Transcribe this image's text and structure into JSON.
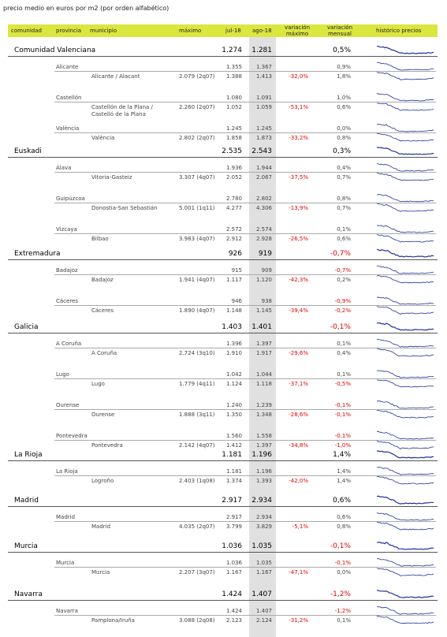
{
  "caption": "precio medio en euros por m2 (por orden alfabético)",
  "columns": {
    "comunidad": "comunidad",
    "provincia": "provincia",
    "municipio": "municipio",
    "maximo": "máximo",
    "jul": "jul-18",
    "ago": "ago-18",
    "var_max": "variación máximo",
    "var_mensual": "variación mensual",
    "historico": "histórico precios"
  },
  "accent_color": "#dbe73f",
  "negative_color": "#e00000",
  "sparkline_color": "#1f2f9a",
  "regions": [
    {
      "name": "Comunidad Valenciana",
      "jul": "1.274",
      "ago": "1.281",
      "var_mensual": "0,5%",
      "provinces": [
        {
          "name": "Alicante",
          "jul": "1.355",
          "ago": "1.367",
          "var_mensual": "0,9%",
          "city": {
            "name": "Alicante / Alacant",
            "maximo": "2.079 (2q07)",
            "jul": "1.388",
            "ago": "1.413",
            "var_max": "-32,0%",
            "var_mensual": "1,8%"
          }
        },
        {
          "name": "Castellón",
          "jul": "1.080",
          "ago": "1.091",
          "var_mensual": "1,0%",
          "city": {
            "name": "Castellón de la Plana / Castelló de la Plana",
            "maximo": "2.260 (2q07)",
            "jul": "1.052",
            "ago": "1.059",
            "var_max": "-53,1%",
            "var_mensual": "0,6%"
          }
        },
        {
          "name": "València",
          "jul": "1.245",
          "ago": "1.245",
          "var_mensual": "0,0%",
          "city": {
            "name": "València",
            "maximo": "2.802 (2q07)",
            "jul": "1.858",
            "ago": "1.873",
            "var_max": "-33,2%",
            "var_mensual": "0,8%"
          }
        }
      ]
    },
    {
      "name": "Euskadi",
      "jul": "2.535",
      "ago": "2.543",
      "var_mensual": "0,3%",
      "provinces": [
        {
          "name": "Álava",
          "jul": "1.936",
          "ago": "1.944",
          "var_mensual": "0,4%",
          "city": {
            "name": "Vitoria-Gasteiz",
            "maximo": "3.307 (4q07)",
            "jul": "2.052",
            "ago": "2.067",
            "var_max": "-37,5%",
            "var_mensual": "0,7%"
          }
        },
        {
          "name": "Guipúzcoa",
          "jul": "2.780",
          "ago": "2.802",
          "var_mensual": "0,8%",
          "city": {
            "name": "Donostia-San Sebastián",
            "maximo": "5.001 (1q11)",
            "jul": "4.277",
            "ago": "4.306",
            "var_max": "-13,9%",
            "var_mensual": "0,7%"
          }
        },
        {
          "name": "Vizcaya",
          "jul": "2.572",
          "ago": "2.574",
          "var_mensual": "0,1%",
          "city": {
            "name": "Bilbao",
            "maximo": "3.983 (4q07)",
            "jul": "2.912",
            "ago": "2.928",
            "var_max": "-26,5%",
            "var_mensual": "0,6%"
          }
        }
      ]
    },
    {
      "name": "Extremadura",
      "jul": "926",
      "ago": "919",
      "var_mensual": "-0,7%",
      "provinces": [
        {
          "name": "Badajoz",
          "jul": "915",
          "ago": "909",
          "var_mensual": "-0,7%",
          "city": {
            "name": "Badajoz",
            "maximo": "1.941 (4q07)",
            "jul": "1.117",
            "ago": "1.120",
            "var_max": "-42,3%",
            "var_mensual": "0,2%"
          }
        },
        {
          "name": "Cáceres",
          "jul": "946",
          "ago": "938",
          "var_mensual": "-0,9%",
          "city": {
            "name": "Cáceres",
            "maximo": "1.890 (4q07)",
            "jul": "1.148",
            "ago": "1.145",
            "var_max": "-39,4%",
            "var_mensual": "-0,2%"
          }
        }
      ]
    },
    {
      "name": "Galicia",
      "jul": "1.403",
      "ago": "1.401",
      "var_mensual": "-0,1%",
      "provinces": [
        {
          "name": "A Coruña",
          "jul": "1.396",
          "ago": "1.397",
          "var_mensual": "0,1%",
          "city": {
            "name": "A Coruña",
            "maximo": "2.724 (3q10)",
            "jul": "1.910",
            "ago": "1.917",
            "var_max": "-29,6%",
            "var_mensual": "0,4%"
          }
        },
        {
          "name": "Lugo",
          "jul": "1.042",
          "ago": "1.044",
          "var_mensual": "0,1%",
          "city": {
            "name": "Lugo",
            "maximo": "1.779 (4q11)",
            "jul": "1.124",
            "ago": "1.118",
            "var_max": "-37,1%",
            "var_mensual": "-0,5%"
          }
        },
        {
          "name": "Ourense",
          "jul": "1.240",
          "ago": "1.239",
          "var_mensual": "-0,1%",
          "city": {
            "name": "Ourense",
            "maximo": "1.888 (3q11)",
            "jul": "1.350",
            "ago": "1.348",
            "var_max": "-28,6%",
            "var_mensual": "-0,1%"
          }
        },
        {
          "name": "Pontevedra",
          "jul": "1.560",
          "ago": "1.558",
          "var_mensual": "-0,1%",
          "city": {
            "name": "Pontevedra",
            "maximo": "2.142 (4q07)",
            "jul": "1.412",
            "ago": "1.397",
            "var_max": "-34,8%",
            "var_mensual": "-1,0%"
          }
        }
      ]
    },
    {
      "name": "La Rioja",
      "jul": "1.181",
      "ago": "1.196",
      "var_mensual": "1,4%",
      "provinces": [
        {
          "name": "La Rioja",
          "jul": "1.181",
          "ago": "1.196",
          "var_mensual": "1,4%",
          "city": {
            "name": "Logroño",
            "maximo": "2.403 (1q08)",
            "jul": "1.374",
            "ago": "1.393",
            "var_max": "-42,0%",
            "var_mensual": "1,4%"
          }
        }
      ]
    },
    {
      "name": "Madrid",
      "jul": "2.917",
      "ago": "2.934",
      "var_mensual": "0,6%",
      "provinces": [
        {
          "name": "Madrid",
          "jul": "2.917",
          "ago": "2.934",
          "var_mensual": "0,6%",
          "city": {
            "name": "Madrid",
            "maximo": "4.035 (2q07)",
            "jul": "3.799",
            "ago": "3.829",
            "var_max": "-5,1%",
            "var_mensual": "0,8%"
          }
        }
      ]
    },
    {
      "name": "Murcia",
      "jul": "1.036",
      "ago": "1.035",
      "var_mensual": "-0,1%",
      "provinces": [
        {
          "name": "Murcia",
          "jul": "1.036",
          "ago": "1.035",
          "var_mensual": "-0,1%",
          "city": {
            "name": "Murcia",
            "maximo": "2.207 (3q07)",
            "jul": "1.167",
            "ago": "1.167",
            "var_max": "-47,1%",
            "var_mensual": "0,0%"
          }
        }
      ]
    },
    {
      "name": "Navarra",
      "jul": "1.424",
      "ago": "1.407",
      "var_mensual": "-1,2%",
      "provinces": [
        {
          "name": "Navarra",
          "jul": "1.424",
          "ago": "1.407",
          "var_mensual": "-1,2%",
          "city": {
            "name": "Pamplona/Iruña",
            "maximo": "3.088 (2q08)",
            "jul": "2.123",
            "ago": "2.124",
            "var_max": "-31,2%",
            "var_mensual": "0,1%"
          }
        }
      ]
    }
  ]
}
